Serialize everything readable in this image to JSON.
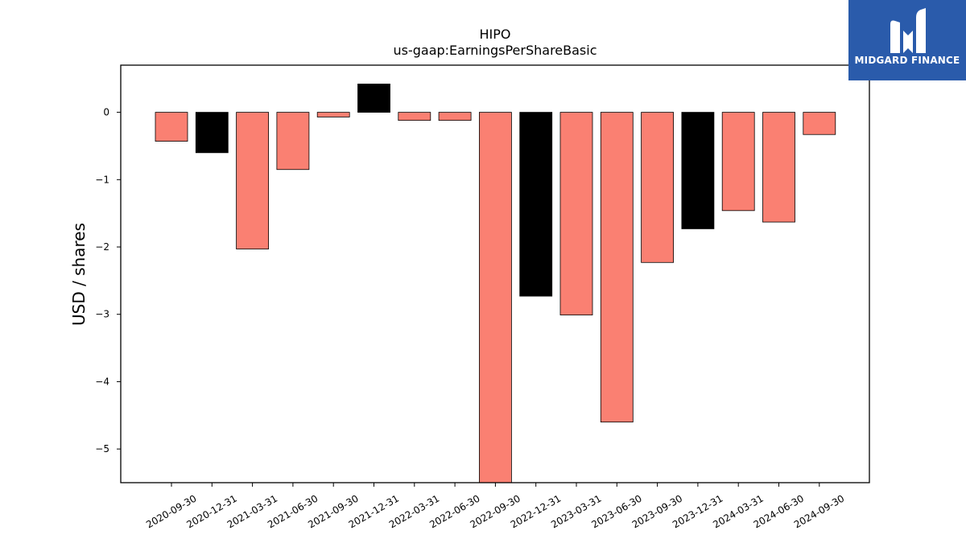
{
  "chart_data": {
    "type": "bar",
    "title": "HIPO",
    "subtitle": "us-gaap:EarningsPerShareBasic",
    "xlabel": "",
    "ylabel": "USD / shares",
    "ylim": [
      -5.5,
      0.7
    ],
    "yticks": [
      0,
      -1,
      -2,
      -3,
      -4,
      -5
    ],
    "ytick_labels": [
      "0",
      "−1",
      "−2",
      "−3",
      "−4",
      "−5"
    ],
    "grid": false,
    "categories": [
      "2020-09-30",
      "2020-12-31",
      "2021-03-31",
      "2021-06-30",
      "2021-09-30",
      "2021-12-31",
      "2022-03-31",
      "2022-06-30",
      "2022-09-30",
      "2022-12-31",
      "2023-03-31",
      "2023-06-30",
      "2023-09-30",
      "2023-12-31",
      "2024-03-31",
      "2024-06-30",
      "2024-09-30"
    ],
    "values": [
      -0.43,
      -0.6,
      -2.03,
      -0.85,
      -0.07,
      0.42,
      -0.12,
      -0.12,
      -5.55,
      -2.73,
      -3.01,
      -4.6,
      -2.23,
      -1.73,
      -1.46,
      -1.63,
      -0.33
    ],
    "colors": [
      "#fa8072",
      "#000000",
      "#fa8072",
      "#fa8072",
      "#fa8072",
      "#000000",
      "#fa8072",
      "#fa8072",
      "#fa8072",
      "#000000",
      "#fa8072",
      "#fa8072",
      "#fa8072",
      "#000000",
      "#fa8072",
      "#fa8072",
      "#fa8072"
    ]
  },
  "logo": {
    "text": "MIDGARD FINANCE",
    "background": "#2a5bab"
  }
}
